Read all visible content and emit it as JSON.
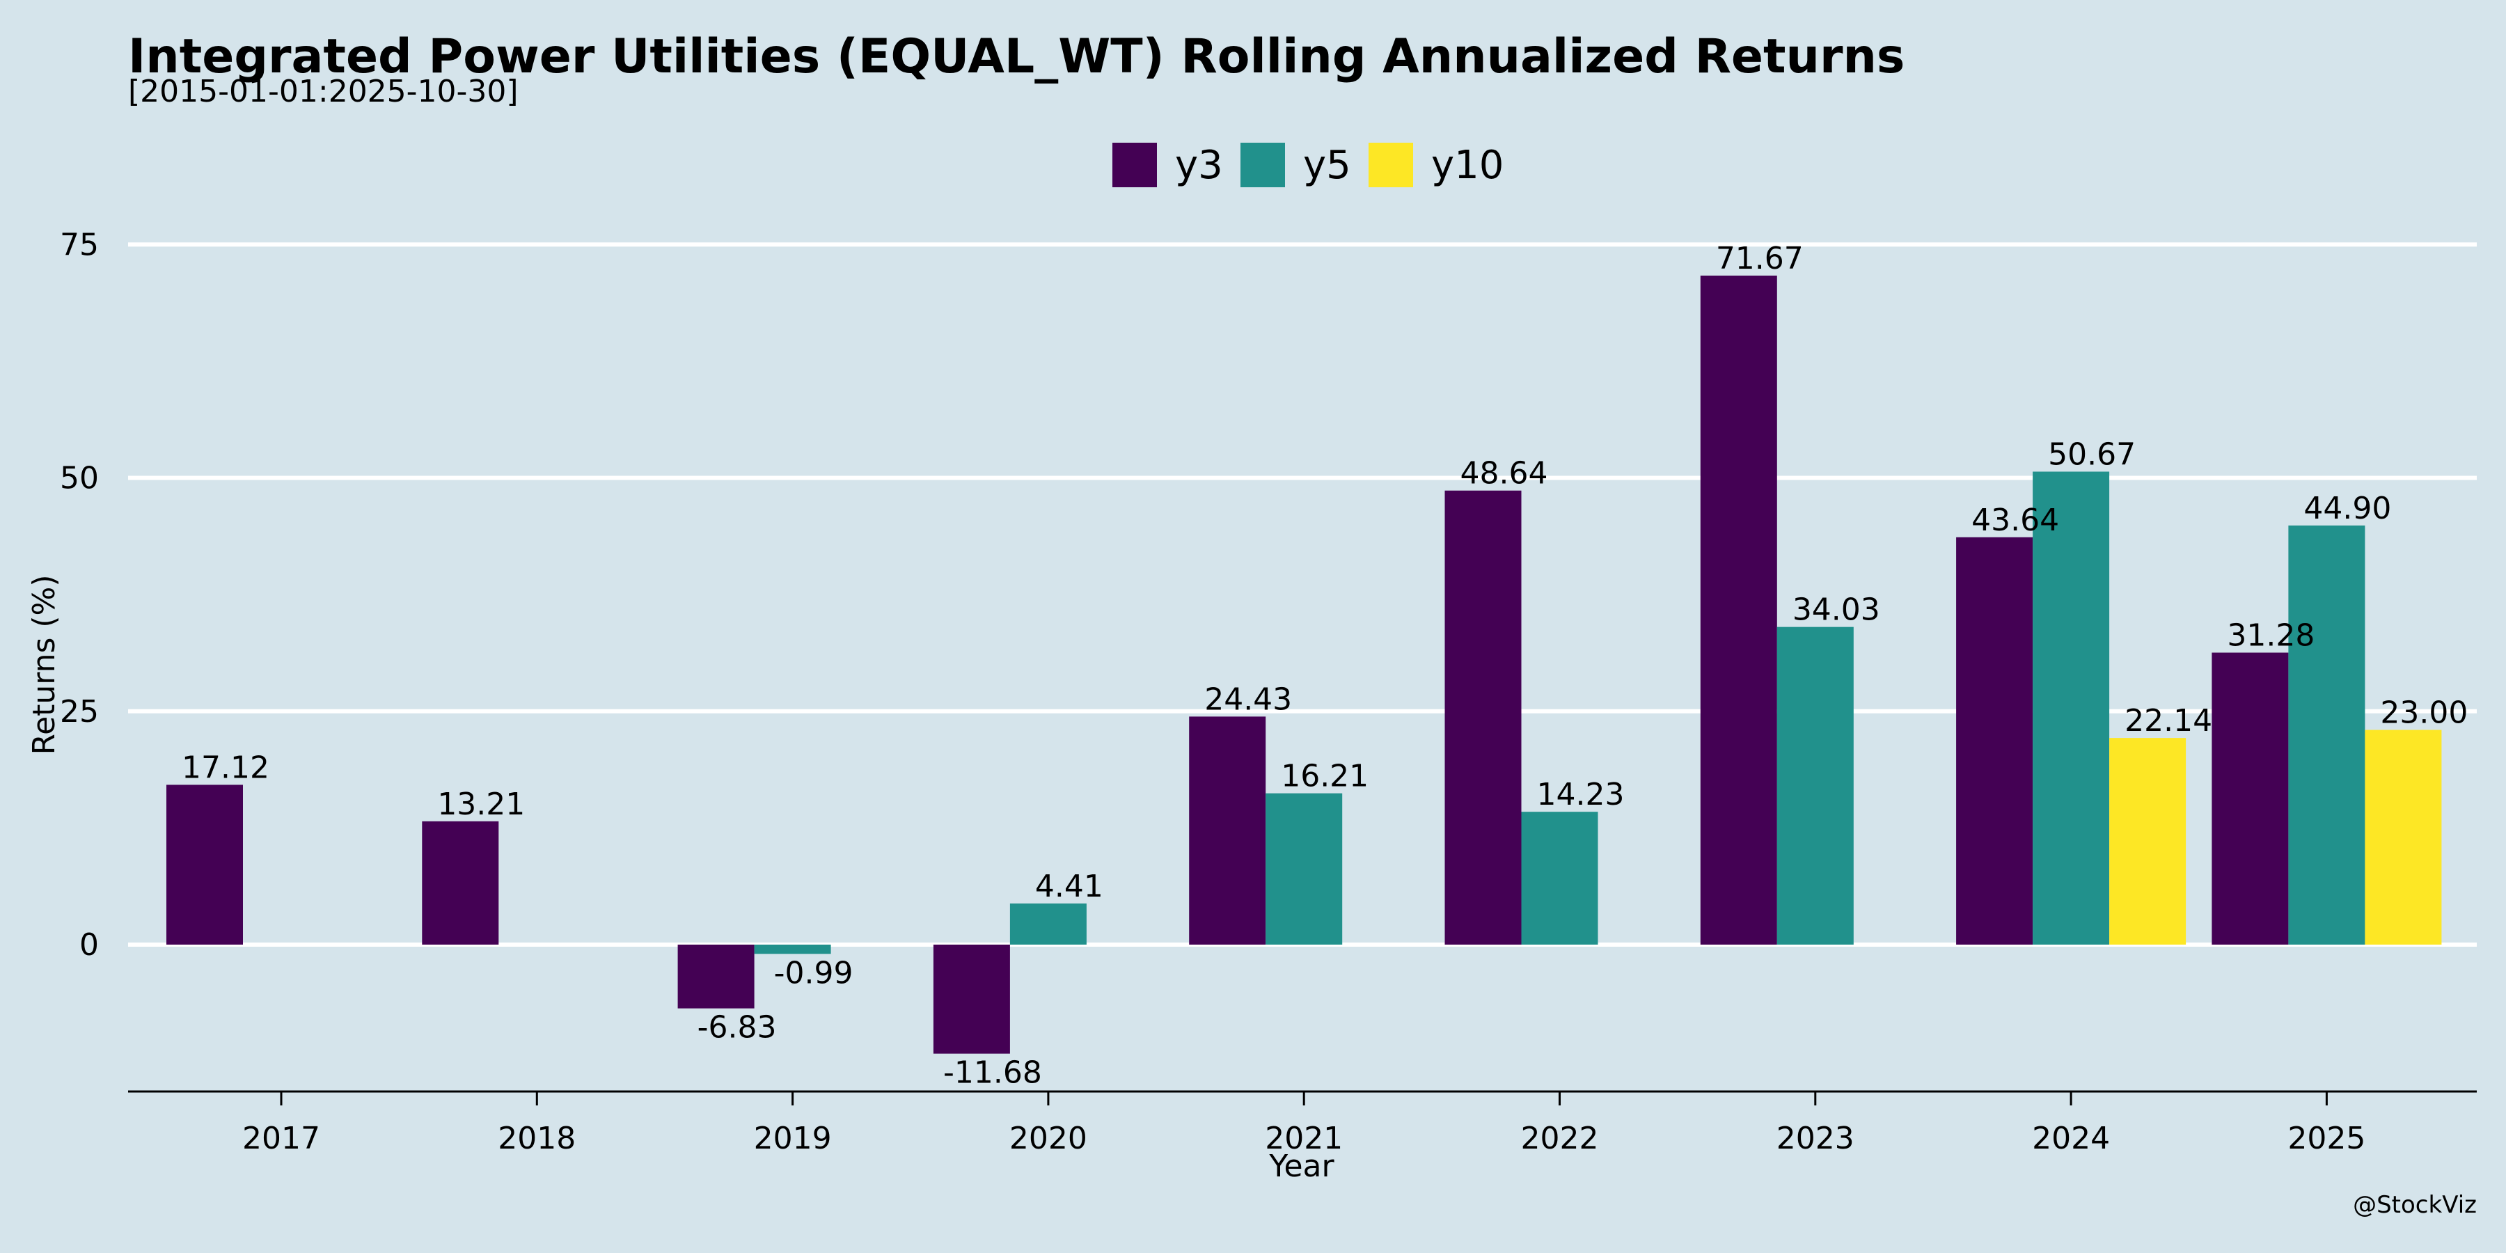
{
  "chart_data": {
    "type": "bar",
    "title": "Integrated Power Utilities (EQUAL_WT) Rolling Annualized Returns",
    "subtitle": "[2015-01-01:2025-10-30]",
    "xlabel": "Year",
    "ylabel": "Returns (%)",
    "categories": [
      "2017",
      "2018",
      "2019",
      "2020",
      "2021",
      "2022",
      "2023",
      "2024",
      "2025"
    ],
    "series": [
      {
        "name": "y3",
        "color": "#440154",
        "values": [
          17.12,
          13.21,
          -6.83,
          -11.68,
          24.43,
          48.64,
          71.67,
          43.64,
          31.28
        ]
      },
      {
        "name": "y5",
        "color": "#21918c",
        "values": [
          null,
          null,
          -0.99,
          4.41,
          16.21,
          14.23,
          34.03,
          50.67,
          44.9
        ]
      },
      {
        "name": "y10",
        "color": "#fde725",
        "values": [
          null,
          null,
          null,
          null,
          null,
          null,
          null,
          22.14,
          23.0
        ]
      }
    ],
    "data_labels": [
      [
        "17.12",
        "13.21",
        "-6.83",
        "-11.68",
        "24.43",
        "48.64",
        "71.67",
        "43.64",
        "31.28"
      ],
      [
        null,
        null,
        "-0.99",
        "4.41",
        "16.21",
        "14.23",
        "34.03",
        "50.67",
        "44.90"
      ],
      [
        null,
        null,
        null,
        null,
        null,
        null,
        null,
        "22.14",
        "23.00"
      ]
    ],
    "yticks": [
      0,
      25,
      50,
      75
    ],
    "ylim": [
      -16,
      75
    ],
    "grid": "horizontal",
    "legend_position": "top-center",
    "watermark": "@StockViz",
    "background": "#d5e4eb"
  }
}
